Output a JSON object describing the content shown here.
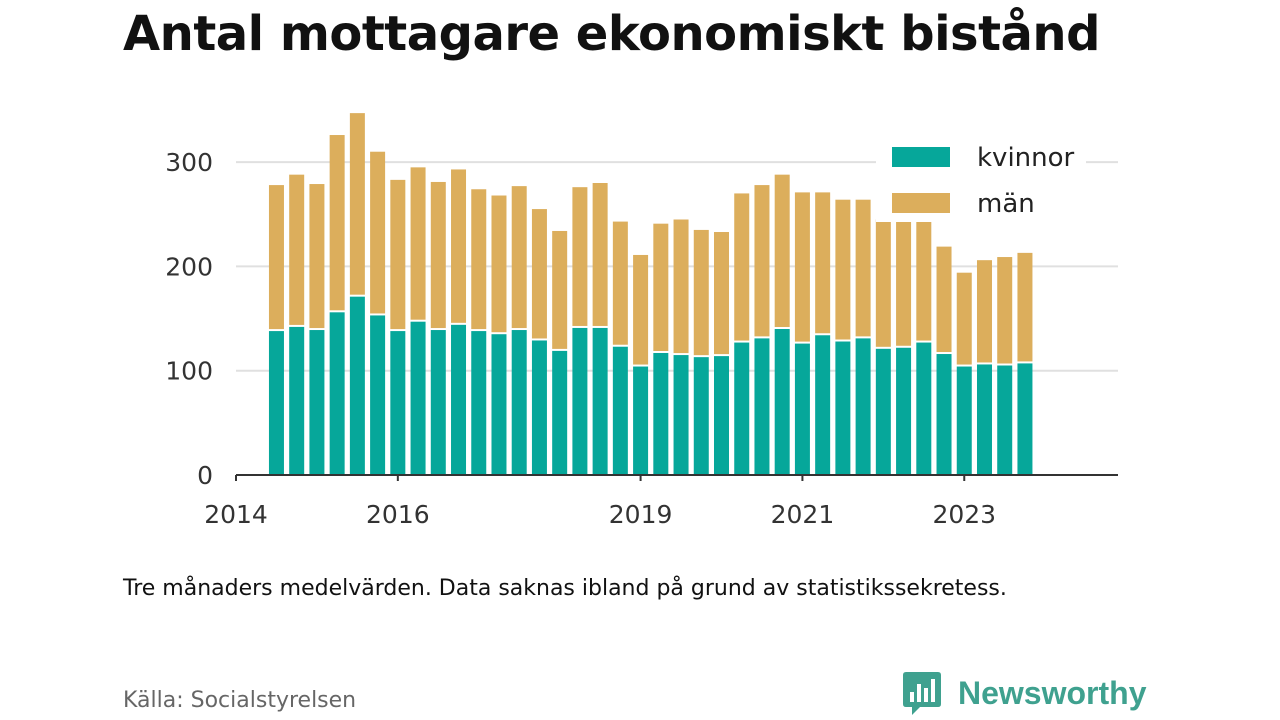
{
  "title": "Antal mottagare ekonomiskt bistånd",
  "note": "Tre månaders medelvärden. Data saknas ibland på grund av statistikssekretess.",
  "source": "Källa: Socialstyrelsen",
  "brand": {
    "name": "Newsworthy",
    "icon": "newsworthy-logo-icon"
  },
  "colors": {
    "kvinnor": "#06a79a",
    "man": "#dcae5c",
    "axis": "#333333",
    "grid": "#e0e0e0",
    "brand": "#3fa18f"
  },
  "chart_data": {
    "type": "bar",
    "stacked": true,
    "grid": true,
    "legend_position": "top-right",
    "ylim": [
      0,
      350
    ],
    "yticks": [
      0,
      100,
      200,
      300
    ],
    "xlim": [
      2014.0,
      2024.9
    ],
    "xticks": [
      2014,
      2016,
      2019,
      2021,
      2023
    ],
    "x": [
      2014.5,
      2014.75,
      2015.0,
      2015.25,
      2015.5,
      2015.75,
      2016.0,
      2016.25,
      2016.5,
      2016.75,
      2017.0,
      2017.25,
      2017.5,
      2017.75,
      2018.0,
      2018.25,
      2018.5,
      2018.75,
      2019.0,
      2019.25,
      2019.5,
      2019.75,
      2020.0,
      2020.25,
      2020.5,
      2020.75,
      2021.0,
      2021.25,
      2021.5,
      2021.75,
      2022.0,
      2022.25,
      2022.5,
      2022.75,
      2023.0,
      2023.25,
      2023.5,
      2023.75
    ],
    "series": [
      {
        "name": "kvinnor",
        "values": [
          138,
          142,
          139,
          156,
          171,
          153,
          138,
          147,
          139,
          144,
          138,
          135,
          139,
          129,
          119,
          141,
          141,
          123,
          104,
          117,
          115,
          113,
          114,
          127,
          131,
          140,
          126,
          134,
          128,
          131,
          121,
          122,
          127,
          116,
          104,
          106,
          105,
          107
        ]
      },
      {
        "name": "män",
        "values": [
          140,
          146,
          140,
          170,
          176,
          157,
          145,
          148,
          142,
          149,
          136,
          133,
          138,
          126,
          115,
          135,
          139,
          120,
          107,
          124,
          130,
          122,
          119,
          143,
          147,
          148,
          145,
          137,
          136,
          133,
          124,
          127,
          121,
          103,
          90,
          100,
          104,
          106
        ]
      }
    ]
  }
}
